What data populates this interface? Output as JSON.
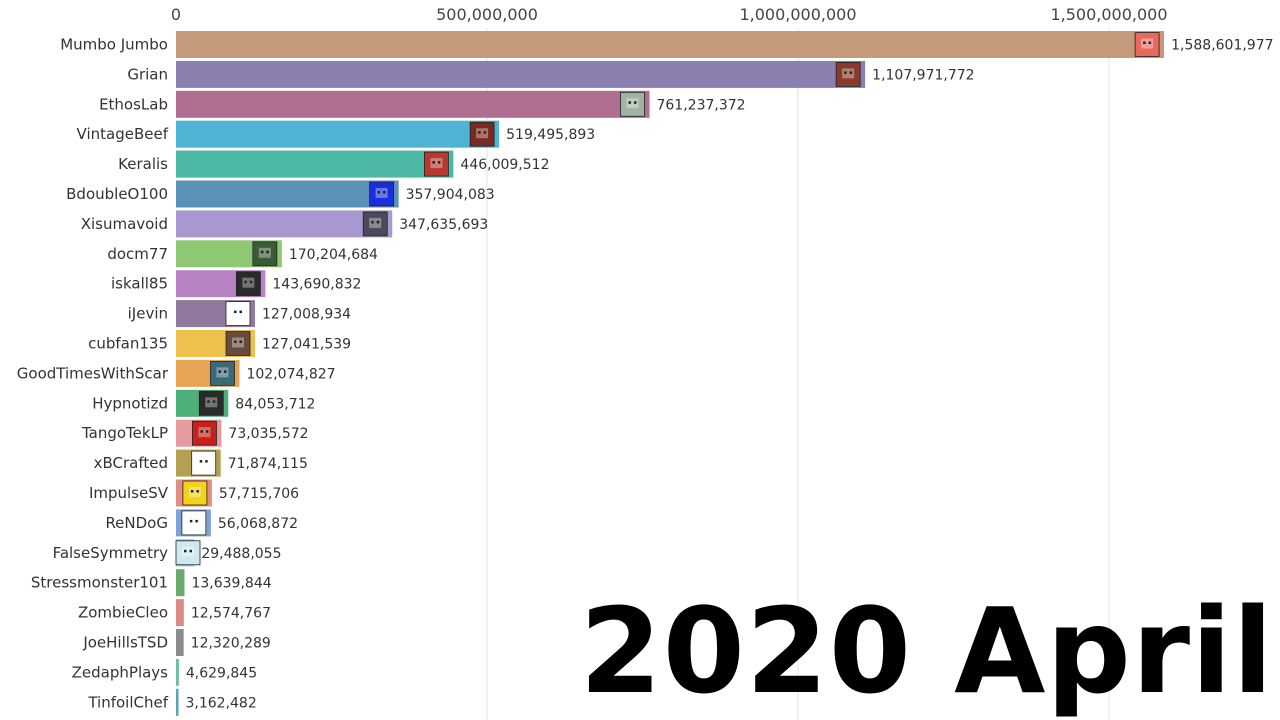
{
  "chart_data": {
    "type": "bar",
    "orientation": "horizontal",
    "period": "2020 April",
    "xlim": [
      0,
      1700000000
    ],
    "ticks": [
      {
        "value": 0,
        "label": "0"
      },
      {
        "value": 500000000,
        "label": "500,000,000"
      },
      {
        "value": 1000000000,
        "label": "1,000,000,000"
      },
      {
        "value": 1500000000,
        "label": "1,500,000,000"
      }
    ],
    "grid": true,
    "bars": [
      {
        "name": "Mumbo Jumbo",
        "value": 1588601977,
        "value_label": "1,588,601,977",
        "color": "#c49a7a",
        "icon": "mumbo-avatar-icon",
        "icon_bg": "#e86a5e"
      },
      {
        "name": "Grian",
        "value": 1107971772,
        "value_label": "1,107,971,772",
        "color": "#8a7fae",
        "icon": "grian-avatar-icon",
        "icon_bg": "#8a3a2a"
      },
      {
        "name": "EthosLab",
        "value": 761237372,
        "value_label": "761,237,372",
        "color": "#b06e92",
        "icon": "ethoslab-avatar-icon",
        "icon_bg": "#9fb3a0"
      },
      {
        "name": "VintageBeef",
        "value": 519495893,
        "value_label": "519,495,893",
        "color": "#4fb4d4",
        "icon": "vintagebeef-avatar-icon",
        "icon_bg": "#7a2a20"
      },
      {
        "name": "Keralis",
        "value": 446009512,
        "value_label": "446,009,512",
        "color": "#4db8a4",
        "icon": "keralis-avatar-icon",
        "icon_bg": "#b83a2e"
      },
      {
        "name": "BdoubleO100",
        "value": 357904083,
        "value_label": "357,904,083",
        "color": "#5a91b6",
        "icon": "bdoubleo-avatar-icon",
        "icon_bg": "#1a2ee0"
      },
      {
        "name": "Xisumavoid",
        "value": 347635693,
        "value_label": "347,635,693",
        "color": "#a997cf",
        "icon": "xisumavoid-avatar-icon",
        "icon_bg": "#4a4a5a"
      },
      {
        "name": "docm77",
        "value": 170204684,
        "value_label": "170,204,684",
        "color": "#8fc873",
        "icon": "docm77-avatar-icon",
        "icon_bg": "#3a5a3a"
      },
      {
        "name": "iskall85",
        "value": 143690832,
        "value_label": "143,690,832",
        "color": "#b883c4",
        "icon": "iskall85-avatar-icon",
        "icon_bg": "#2a2a2a"
      },
      {
        "name": "iJevin",
        "value": 127008934,
        "value_label": "127,008,934",
        "color": "#8f7a9e",
        "icon": "ijevin-avatar-icon",
        "icon_bg": "#ffffff"
      },
      {
        "name": "cubfan135",
        "value": 127041539,
        "value_label": "127,041,539",
        "color": "#eec14f",
        "icon": "cubfan135-avatar-icon",
        "icon_bg": "#6a4a3a"
      },
      {
        "name": "GoodTimesWithScar",
        "value": 102074827,
        "value_label": "102,074,827",
        "color": "#e8a455",
        "icon": "scar-avatar-icon",
        "icon_bg": "#3a6a7a"
      },
      {
        "name": "Hypnotizd",
        "value": 84053712,
        "value_label": "84,053,712",
        "color": "#4daf7a",
        "icon": "hypnotizd-avatar-icon",
        "icon_bg": "#2a2a2a"
      },
      {
        "name": "TangoTekLP",
        "value": 73035572,
        "value_label": "73,035,572",
        "color": "#e59aa0",
        "icon": "tangotek-avatar-icon",
        "icon_bg": "#c8201a"
      },
      {
        "name": "xBCrafted",
        "value": 71874115,
        "value_label": "71,874,115",
        "color": "#b3a052",
        "icon": "xbcrafted-avatar-icon",
        "icon_bg": "#ffffff"
      },
      {
        "name": "ImpulseSV",
        "value": 57715706,
        "value_label": "57,715,706",
        "color": "#e08e80",
        "icon": "impulsesv-avatar-icon",
        "icon_bg": "#f2d21a"
      },
      {
        "name": "ReNDoG",
        "value": 56068872,
        "value_label": "56,068,872",
        "color": "#7fa3d8",
        "icon": "rendog-avatar-icon",
        "icon_bg": "#ffffff"
      },
      {
        "name": "FalseSymmetry",
        "value": 29488055,
        "value_label": "29,488,055",
        "color": "#7fc7de",
        "icon": "falsesymmetry-avatar-icon",
        "icon_bg": "#cfe8f0"
      },
      {
        "name": "Stressmonster101",
        "value": 13639844,
        "value_label": "13,639,844",
        "color": "#6aaa6a",
        "icon": "",
        "icon_bg": ""
      },
      {
        "name": "ZombieCleo",
        "value": 12574767,
        "value_label": "12,574,767",
        "color": "#d98b84",
        "icon": "",
        "icon_bg": ""
      },
      {
        "name": "JoeHillsTSD",
        "value": 12320289,
        "value_label": "12,320,289",
        "color": "#8c8c8c",
        "icon": "",
        "icon_bg": ""
      },
      {
        "name": "ZedaphPlays",
        "value": 4629845,
        "value_label": "4,629,845",
        "color": "#6fbf9f",
        "icon": "",
        "icon_bg": ""
      },
      {
        "name": "TinfoilChef",
        "value": 3162482,
        "value_label": "3,162,482",
        "color": "#5aa3b8",
        "icon": "",
        "icon_bg": ""
      }
    ]
  }
}
